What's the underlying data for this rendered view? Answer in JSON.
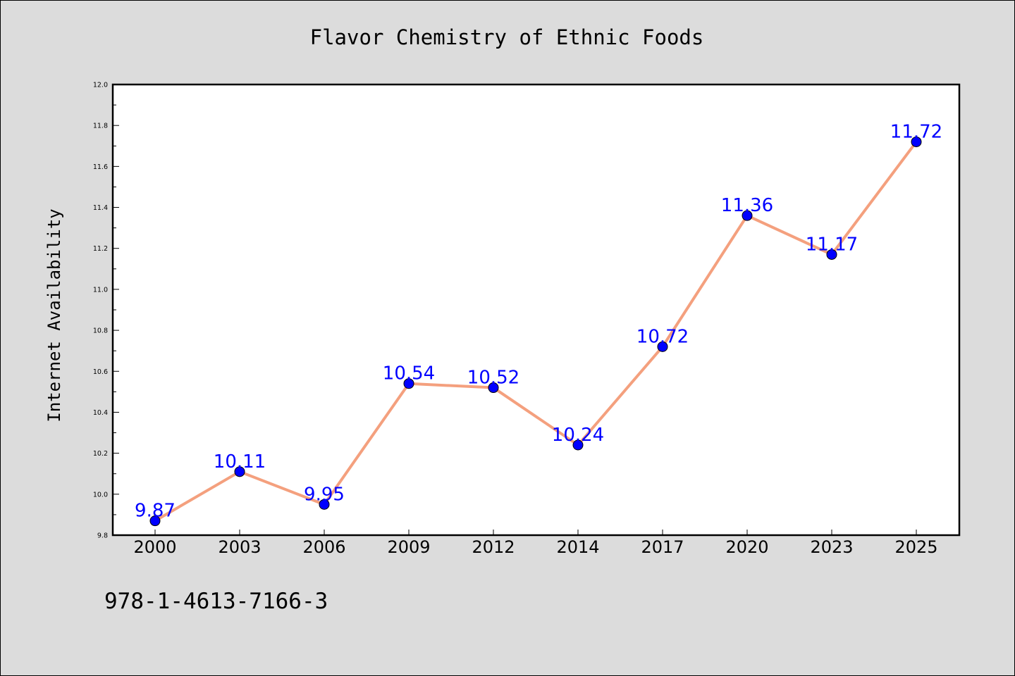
{
  "chart_data": {
    "type": "line",
    "title": "Flavor Chemistry of Ethnic Foods",
    "ylabel": "Internet Availability",
    "xlabel": "",
    "categories": [
      "2000",
      "2003",
      "2006",
      "2009",
      "2012",
      "2014",
      "2017",
      "2020",
      "2023",
      "2025"
    ],
    "values": [
      9.87,
      10.11,
      9.95,
      10.54,
      10.52,
      10.24,
      10.72,
      11.36,
      11.17,
      11.72
    ],
    "data_labels": [
      "9.87",
      "10.11",
      "9.95",
      "10.54",
      "10.52",
      "10.24",
      "10.72",
      "11.36",
      "11.17",
      "11.72"
    ],
    "ylim": [
      9.8,
      12.0
    ],
    "y_ticks": [
      "9.8",
      "10.0",
      "10.2",
      "10.4",
      "10.6",
      "10.8",
      "11.0",
      "11.2",
      "11.4",
      "11.6",
      "11.8",
      "12.0"
    ],
    "grid": false,
    "line_color": "#f4a07e",
    "marker_color": "#0000ff",
    "label_color": "#0000ff"
  },
  "footer": {
    "isbn": "978-1-4613-7166-3"
  }
}
